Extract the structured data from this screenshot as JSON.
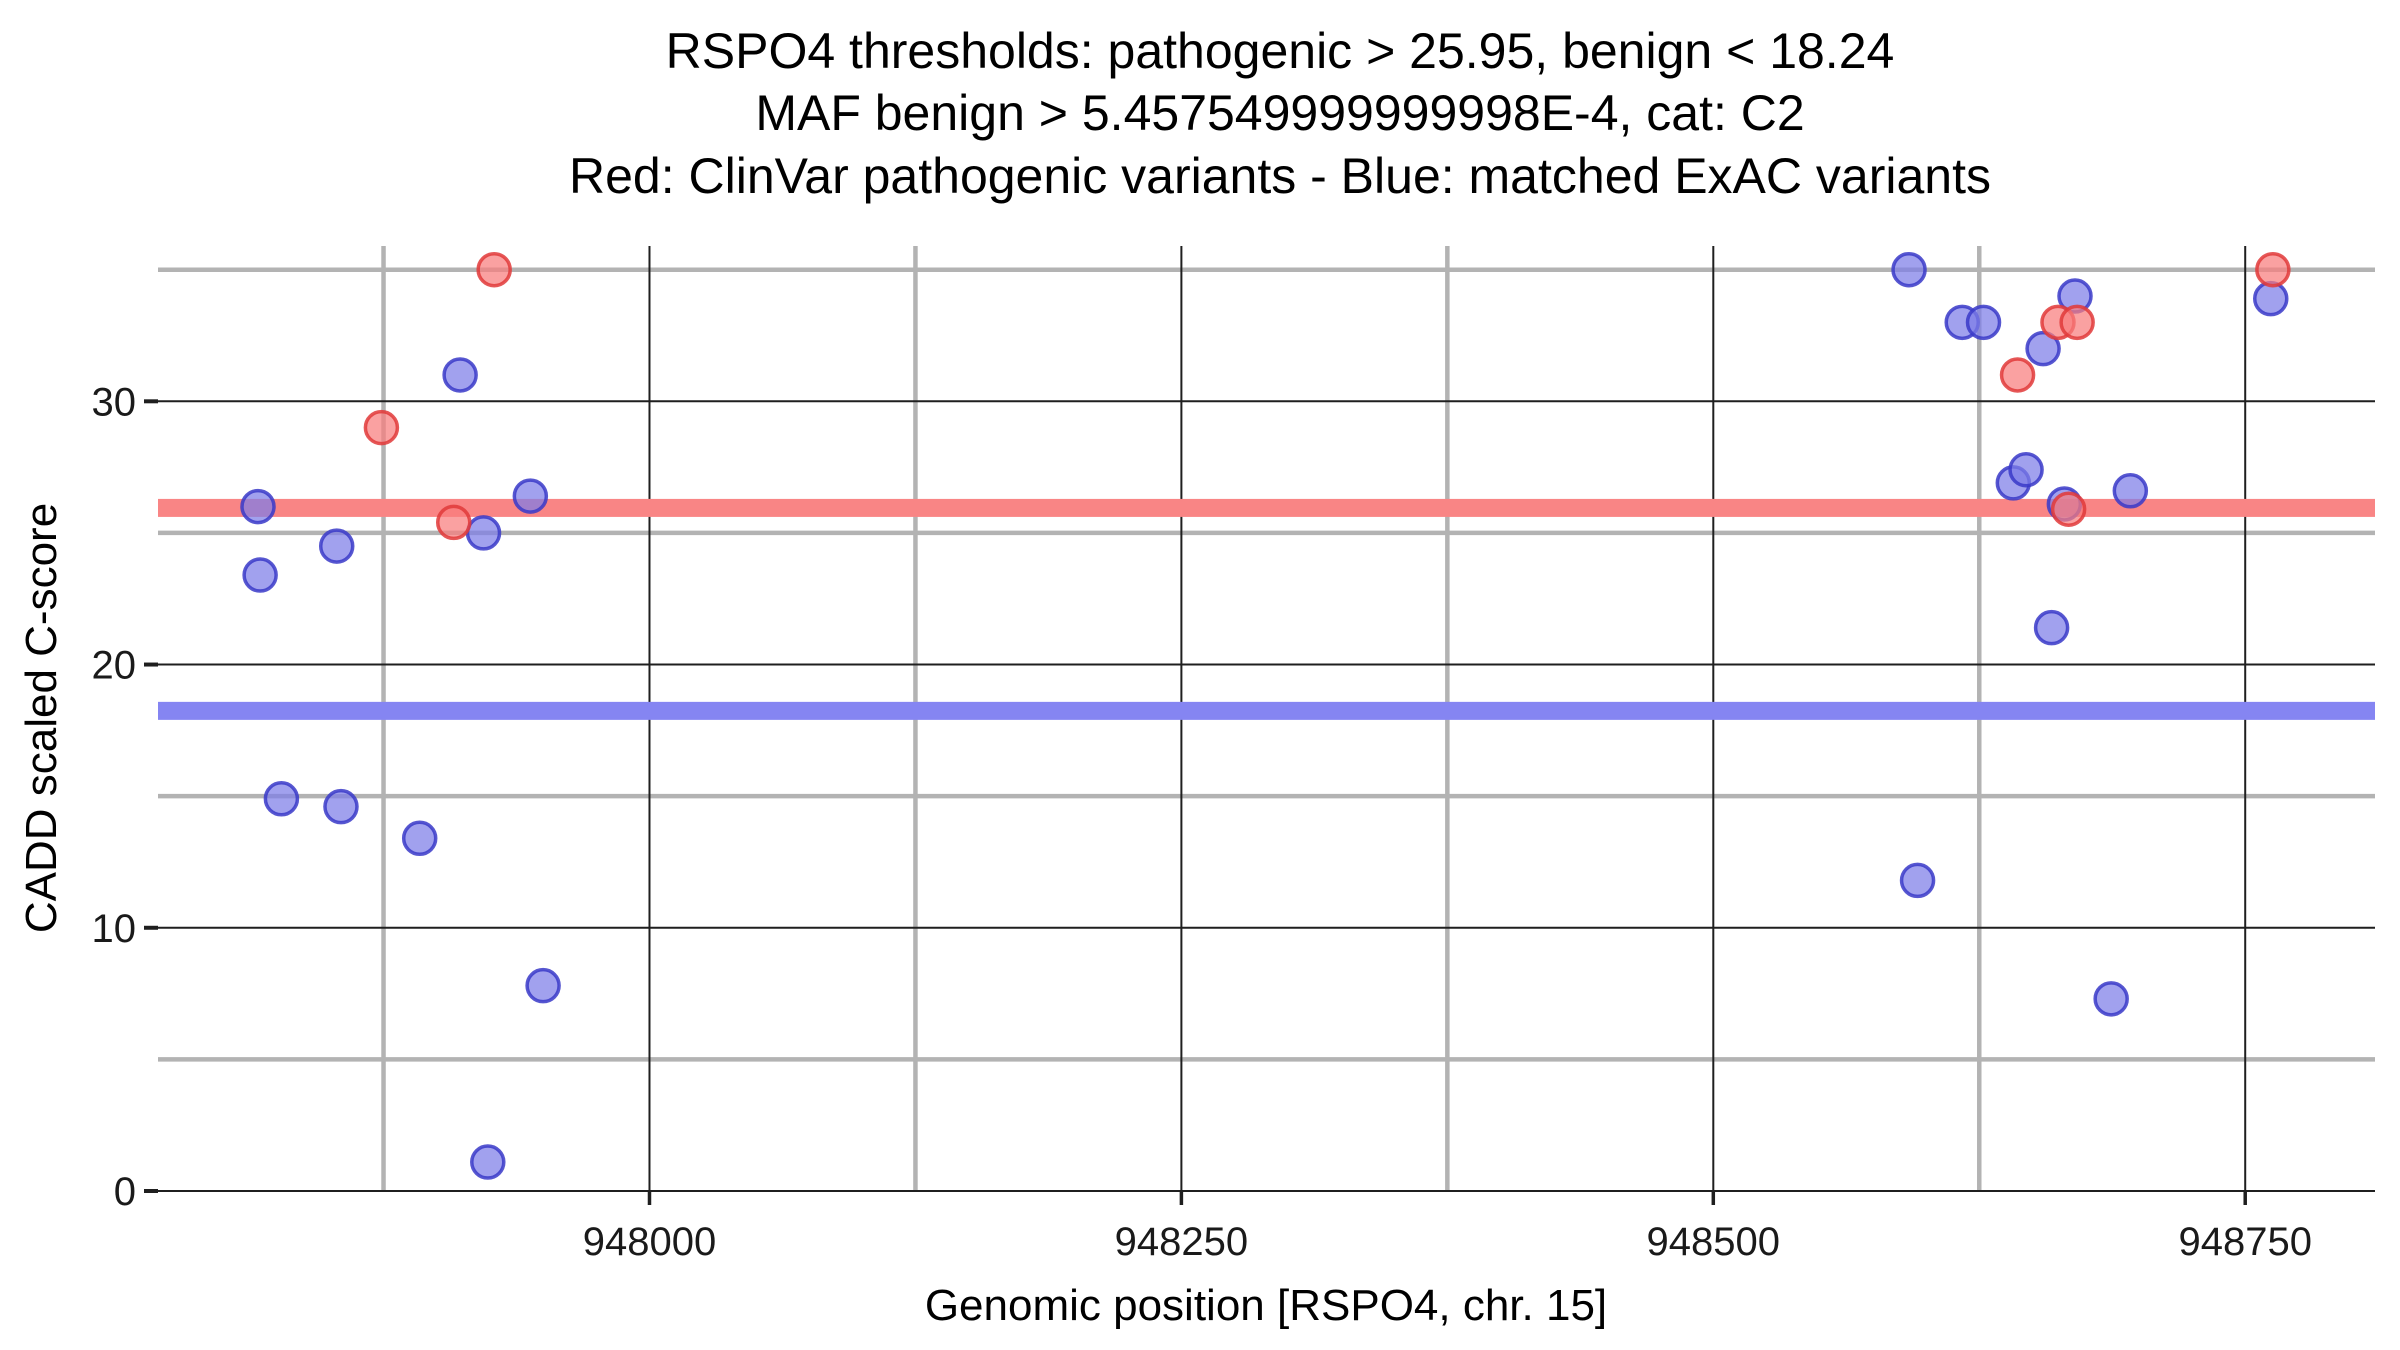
{
  "title": {
    "line1": "RSPO4 thresholds: pathogenic > 25.95, benign < 18.24",
    "line2": "MAF benign > 5.457549999999998E-4, cat: C2",
    "line3": "Red: ClinVar pathogenic variants - Blue: matched ExAC variants"
  },
  "axes": {
    "x": {
      "label": "Genomic position [RSPO4, chr. 15]"
    },
    "y": {
      "label": "CADD scaled C-score"
    }
  },
  "colors": {
    "pathogenic_point_fill": "#f87d7d",
    "pathogenic_point_stroke": "#e03a3a",
    "benign_point_fill": "#7d7de8",
    "benign_point_stroke": "#3a3ac8",
    "pathogenic_band": "#f98585",
    "benign_band": "#8585f2",
    "major_gridline": "#1f1f1f",
    "minor_gridline": "#b3b3b3",
    "background": "#ffffff"
  },
  "chart_data": {
    "type": "scatter",
    "title": "RSPO4 thresholds: pathogenic > 25.95, benign < 18.24 | MAF benign > 5.457549999999998E-4, cat: C2 | Red: ClinVar pathogenic variants - Blue: matched ExAC variants",
    "xlabel": "Genomic position [RSPO4, chr. 15]",
    "ylabel": "CADD scaled C-score",
    "xlim": [
      947769,
      948811
    ],
    "ylim": [
      0,
      35.9
    ],
    "grid": "major dark thin lines at labeled ticks, thick gray lines at midpoints",
    "legend_position": "none (legend described in title line 3)",
    "x_major_ticks": [
      948000,
      948250,
      948500,
      948750
    ],
    "x_major_tick_labels": [
      "948000",
      "948250",
      "948500",
      "948750"
    ],
    "x_minor_gridlines": [
      947875,
      948125,
      948375,
      948625
    ],
    "y_major_ticks": [
      0,
      10,
      20,
      30
    ],
    "y_major_tick_labels": [
      "0",
      "10",
      "20",
      "30"
    ],
    "y_minor_gridlines": [
      5,
      15,
      25,
      35
    ],
    "thresholds": {
      "pathogenic_cutoff": 25.95,
      "benign_cutoff": 18.24
    },
    "bands": [
      {
        "name": "pathogenic-threshold-band",
        "y": 25.95,
        "color": "#f98585"
      },
      {
        "name": "benign-threshold-band",
        "y": 18.24,
        "color": "#8585f2"
      }
    ],
    "series": [
      {
        "name": "matched ExAC variants",
        "color": "#7d7de8",
        "stroke": "#3a3ac8",
        "points": [
          [
            947816,
            26.0
          ],
          [
            947817,
            23.4
          ],
          [
            947827,
            14.9
          ],
          [
            947853,
            24.5
          ],
          [
            947855,
            14.6
          ],
          [
            947892,
            13.4
          ],
          [
            947911,
            31.0
          ],
          [
            947922,
            25.0
          ],
          [
            947924,
            1.1
          ],
          [
            947944,
            26.4
          ],
          [
            947950,
            7.8
          ],
          [
            948592,
            35.0
          ],
          [
            948596,
            11.8
          ],
          [
            948617,
            33.0
          ],
          [
            948627,
            33.0
          ],
          [
            948641,
            26.9
          ],
          [
            948647,
            27.4
          ],
          [
            948655,
            32.0
          ],
          [
            948659,
            21.4
          ],
          [
            948665,
            26.1
          ],
          [
            948670,
            34.0
          ],
          [
            948687,
            7.3
          ],
          [
            948696,
            26.6
          ],
          [
            948762,
            33.9
          ]
        ]
      },
      {
        "name": "ClinVar pathogenic variants",
        "color": "#f87d7d",
        "stroke": "#e03a3a",
        "points": [
          [
            947874,
            29.0
          ],
          [
            947908,
            25.4
          ],
          [
            947927,
            35.0
          ],
          [
            948643,
            31.0
          ],
          [
            948662,
            33.0
          ],
          [
            948667,
            25.9
          ],
          [
            948671,
            33.0
          ],
          [
            948763,
            35.0
          ]
        ]
      }
    ]
  }
}
